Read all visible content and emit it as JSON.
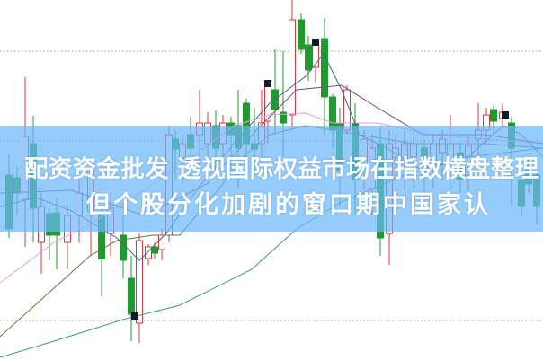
{
  "headline": {
    "line1": "配资资金批发 透视国际权益市场在指数横盘整理",
    "line2": "但个股分化加剧的窗口期中国家认"
  },
  "colors": {
    "up_candle": "#d9383f",
    "down_candle": "#1f9a2e",
    "banner": "#8ec8fa",
    "text": "#ffffff"
  }
}
